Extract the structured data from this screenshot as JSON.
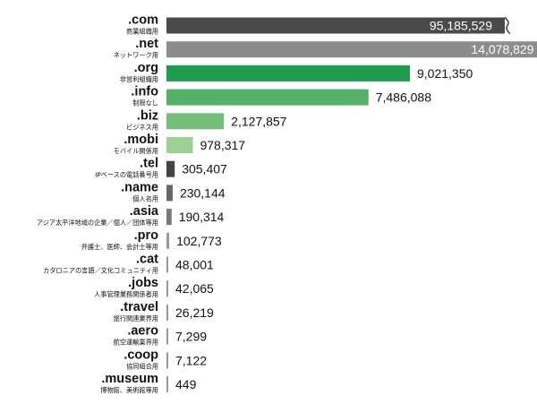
{
  "chart_data": {
    "type": "bar",
    "orientation": "horizontal",
    "title": "",
    "xlabel": "",
    "ylabel": "",
    "axis_break": true,
    "grid": false,
    "legend": "none",
    "categories": [
      ".com",
      ".net",
      ".org",
      ".info",
      ".biz",
      ".mobi",
      ".tel",
      ".name",
      ".asia",
      ".pro",
      ".cat",
      ".jobs",
      ".travel",
      ".aero",
      ".coop",
      ".museum"
    ],
    "descriptions": [
      "商業組織用",
      "ネットワーク用",
      "非営利組織用",
      "制限なし",
      "ビジネス用",
      "モバイル関係用",
      "IPベースの電話番号用",
      "個人名用",
      "アジア太平洋地域の企業／個人／団体等用",
      "弁護士、医師、会計士等用",
      "カタロニアの言語／文化コミュニティ用",
      "人事管理業務関係者用",
      "旅行関連業界用",
      "航空運輸業界用",
      "協同組合用",
      "博物館、美術館等用"
    ],
    "values": [
      95185529,
      14078829,
      9021350,
      7486088,
      2127857,
      978317,
      305407,
      230144,
      190314,
      102773,
      48001,
      42065,
      26219,
      7299,
      7122,
      449
    ],
    "value_labels": [
      "95,185,529",
      "14,078,829",
      "9,021,350",
      "7,486,088",
      "2,127,857",
      "978,317",
      "305,407",
      "230,144",
      "190,314",
      "102,773",
      "48,001",
      "42,065",
      "26,219",
      "7,299",
      "7,122",
      "449"
    ],
    "colors": [
      "#4a4a4a",
      "#8c8c8c",
      "#1f9d4e",
      "#55b06a",
      "#76bd7c",
      "#9dd094",
      "#444444",
      "#666666",
      "#777777",
      "#999999",
      "#999999",
      "#999999",
      "#999999",
      "#999999",
      "#999999",
      "#999999"
    ]
  }
}
